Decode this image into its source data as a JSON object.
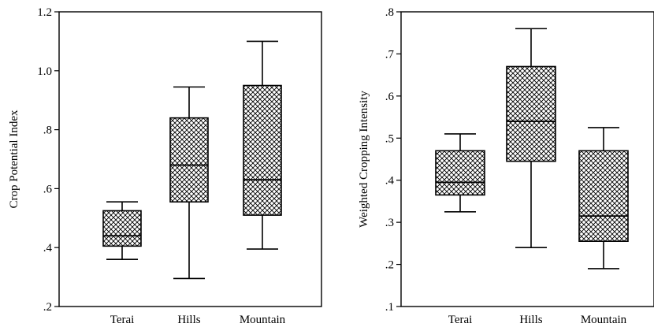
{
  "chart_data": [
    {
      "type": "box",
      "title": "",
      "xlabel": "",
      "ylabel": "Crop Potential Index",
      "ylim": [
        0.2,
        1.2
      ],
      "yticks": [
        0.2,
        0.4,
        0.6,
        0.8,
        1.0,
        1.2
      ],
      "ytick_labels": [
        ".2",
        ".4",
        ".6",
        ".8",
        "1.0",
        "1.2"
      ],
      "categories": [
        "Terai",
        "Hills",
        "Mountain"
      ],
      "boxes": [
        {
          "category": "Terai",
          "min": 0.36,
          "q1": 0.405,
          "median": 0.44,
          "q3": 0.525,
          "max": 0.555
        },
        {
          "category": "Hills",
          "min": 0.295,
          "q1": 0.555,
          "median": 0.68,
          "q3": 0.84,
          "max": 0.945
        },
        {
          "category": "Mountain",
          "min": 0.395,
          "q1": 0.51,
          "median": 0.63,
          "q3": 0.95,
          "max": 1.1
        }
      ],
      "fill": "crosshatch",
      "grid": false
    },
    {
      "type": "box",
      "title": "",
      "xlabel": "",
      "ylabel": "Weighted Cropping Intensity",
      "ylim": [
        0.1,
        0.8
      ],
      "yticks": [
        0.1,
        0.2,
        0.3,
        0.4,
        0.5,
        0.6,
        0.7,
        0.8
      ],
      "ytick_labels": [
        ".1",
        ".2",
        ".3",
        ".4",
        ".5",
        ".6",
        ".7",
        ".8"
      ],
      "categories": [
        "Terai",
        "Hills",
        "Mountain"
      ],
      "boxes": [
        {
          "category": "Terai",
          "min": 0.325,
          "q1": 0.365,
          "median": 0.395,
          "q3": 0.47,
          "max": 0.51
        },
        {
          "category": "Hills",
          "min": 0.24,
          "q1": 0.445,
          "median": 0.54,
          "q3": 0.67,
          "max": 0.76
        },
        {
          "category": "Mountain",
          "min": 0.19,
          "q1": 0.255,
          "median": 0.315,
          "q3": 0.47,
          "max": 0.525
        }
      ],
      "fill": "crosshatch",
      "grid": false
    }
  ]
}
